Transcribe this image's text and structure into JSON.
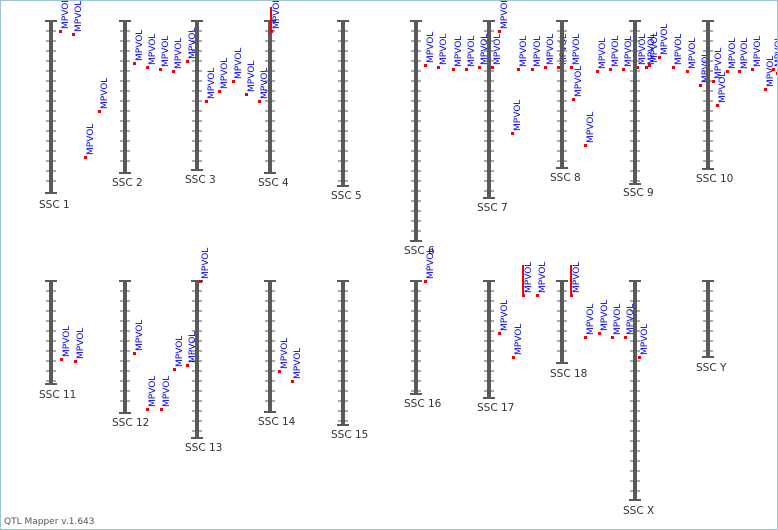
{
  "app": {
    "version_label": "QTL Mapper v.1.643"
  },
  "colors": {
    "chromosome": "#5a5a5a",
    "label": "#333333",
    "qtl_text": "#0000ee",
    "qtl_marker": "#ee0000"
  },
  "trait_label": "MPVOL",
  "chromosomes": [
    {
      "name": "SSC 1",
      "qtls": [
        {
          "label": "MPVOL"
        },
        {
          "label": "MPVOL"
        },
        {
          "label": "MPVOL"
        },
        {
          "label": "MPVOL"
        }
      ]
    },
    {
      "name": "SSC 2",
      "qtls": [
        {
          "label": "MPVOL"
        },
        {
          "label": "MPVOL"
        },
        {
          "label": "MPVOL"
        },
        {
          "label": "MPVOL"
        },
        {
          "label": "MPVOL"
        }
      ]
    },
    {
      "name": "SSC 3",
      "qtls": [
        {
          "label": "MPVOL"
        },
        {
          "label": "MPVOL"
        },
        {
          "label": "MPVOL"
        },
        {
          "label": "MPVOL"
        },
        {
          "label": "MPVOL"
        }
      ]
    },
    {
      "name": "SSC 4",
      "qtls": [
        {
          "label": "MPVOL"
        }
      ]
    },
    {
      "name": "SSC 5",
      "qtls": []
    },
    {
      "name": "SSC 6",
      "qtls": [
        {
          "label": "MPVOL"
        },
        {
          "label": "MPVOL"
        },
        {
          "label": "MPVOL"
        },
        {
          "label": "MPVOL"
        },
        {
          "label": "MPVOL"
        },
        {
          "label": "MPVOL"
        }
      ]
    },
    {
      "name": "SSC 7",
      "qtls": [
        {
          "label": "MPVOL"
        },
        {
          "label": "MPVOL"
        },
        {
          "label": "MPVOL"
        },
        {
          "label": "MPVOL"
        },
        {
          "label": "MPVOL"
        },
        {
          "label": "MPVOL"
        },
        {
          "label": "MPVOL"
        }
      ]
    },
    {
      "name": "SSC 8",
      "qtls": [
        {
          "label": "MPVOL"
        },
        {
          "label": "MPVOL"
        },
        {
          "label": "MPVOL"
        },
        {
          "label": "MPVOL"
        },
        {
          "label": "MPVOL"
        },
        {
          "label": "MPVOL"
        },
        {
          "label": "MPVOL"
        }
      ]
    },
    {
      "name": "SSC 9",
      "qtls": [
        {
          "label": "MPVOL"
        },
        {
          "label": "MPVOL"
        },
        {
          "label": "MPVOL"
        },
        {
          "label": "MPVOL"
        },
        {
          "label": "MPVOL"
        },
        {
          "label": "MPVOL"
        }
      ]
    },
    {
      "name": "SSC 10",
      "qtls": [
        {
          "label": "MPVOL"
        },
        {
          "label": "MPVOL"
        },
        {
          "label": "MPVOL"
        },
        {
          "label": "MPVOL"
        },
        {
          "label": "MPVOL"
        },
        {
          "label": "MPVOL"
        },
        {
          "label": "MPVOL"
        }
      ]
    },
    {
      "name": "SSC 11",
      "qtls": [
        {
          "label": "MPVOL"
        },
        {
          "label": "MPVOL"
        }
      ]
    },
    {
      "name": "SSC 12",
      "qtls": [
        {
          "label": "MPVOL"
        },
        {
          "label": "MPVOL"
        },
        {
          "label": "MPVOL"
        }
      ]
    },
    {
      "name": "SSC 13",
      "qtls": [
        {
          "label": "MPVOL"
        },
        {
          "label": "MPVOL"
        },
        {
          "label": "MPVOL"
        }
      ]
    },
    {
      "name": "SSC 14",
      "qtls": [
        {
          "label": "MPVOL"
        },
        {
          "label": "MPVOL"
        }
      ]
    },
    {
      "name": "SSC 15",
      "qtls": []
    },
    {
      "name": "SSC 16",
      "qtls": [
        {
          "label": "MPVOL"
        }
      ]
    },
    {
      "name": "SSC 17",
      "qtls": [
        {
          "label": "MPVOL"
        },
        {
          "label": "MPVOL"
        },
        {
          "label": "MPVOL"
        },
        {
          "label": "MPVOL"
        }
      ]
    },
    {
      "name": "SSC 18",
      "qtls": [
        {
          "label": "MPVOL"
        },
        {
          "label": "MPVOL"
        },
        {
          "label": "MPVOL"
        },
        {
          "label": "MPVOL"
        },
        {
          "label": "MPVOL"
        }
      ]
    },
    {
      "name": "SSC X",
      "qtls": [
        {
          "label": "MPVOL"
        }
      ]
    },
    {
      "name": "SSC Y",
      "qtls": []
    }
  ]
}
